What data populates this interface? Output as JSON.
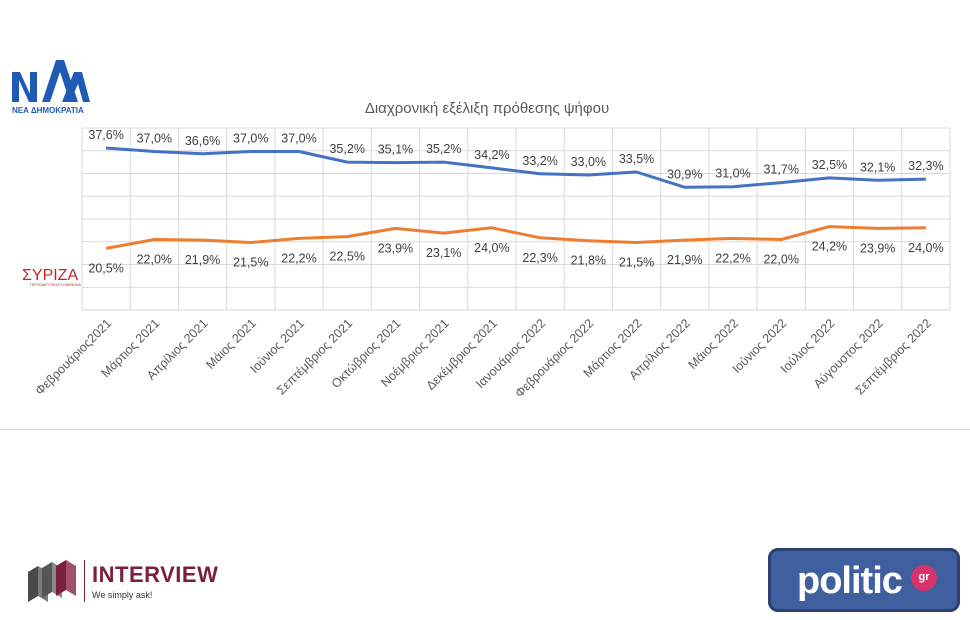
{
  "chart_data": {
    "type": "line",
    "title": "Διαχρονική εξέλιξη πρόθεσης ψήφου",
    "categories": [
      "Φεβρουάριος2021",
      "Μάρτιος 2021",
      "Απρίλιος 2021",
      "Μάιος 2021",
      "Ιούνιος 2021",
      "Σεπτέμβριος 2021",
      "Οκτώβριος 2021",
      "Νοέμβριος 2021",
      "Δεκέμβριος 2021",
      "Ιανουάριος 2022",
      "Φεβρουάριος 2022",
      "Μάρτιος 2022",
      "Απρίλιος 2022",
      "Μάιος 2022",
      "Ιούνιος 2022",
      "Ιούλιος 2022",
      "Αύγουστος 2022",
      "Σεπτέμβριος 2022"
    ],
    "series": [
      {
        "values": [
          37.6,
          37.0,
          36.6,
          37.0,
          37.0,
          35.2,
          35.1,
          35.2,
          34.2,
          33.2,
          33.0,
          33.5,
          30.9,
          31.0,
          31.7,
          32.5,
          32.1,
          32.3
        ],
        "labels": [
          "37,6%",
          "37,0%",
          "36,6%",
          "37,0%",
          "37,0%",
          "35,2%",
          "35,1%",
          "35,2%",
          "34,2%",
          "33,2%",
          "33,0%",
          "33,5%",
          "30,9%",
          "31,0%",
          "31,7%",
          "32,5%",
          "32,1%",
          "32,3%"
        ],
        "color": "#4472c4",
        "label_position": "above",
        "legend_icon": "nd-logo"
      },
      {
        "values": [
          20.5,
          22.0,
          21.9,
          21.5,
          22.2,
          22.5,
          23.9,
          23.1,
          24.0,
          22.3,
          21.8,
          21.5,
          21.9,
          22.2,
          22.0,
          24.2,
          23.9,
          24.0
        ],
        "labels": [
          "20,5%",
          "22,0%",
          "21,9%",
          "21,5%",
          "22,2%",
          "22,5%",
          "23,9%",
          "23,1%",
          "24,0%",
          "22,3%",
          "21,8%",
          "21,5%",
          "21,9%",
          "22,2%",
          "22,0%",
          "24,2%",
          "23,9%",
          "24,0%"
        ],
        "color": "#ed7d31",
        "label_position": "below",
        "legend_icon": "syriza-logo"
      }
    ],
    "ylim": [
      10,
      41
    ],
    "grid": true,
    "legend": "left-logos"
  },
  "logos": {
    "nd": {
      "text": "ΝΕΑ ΔΗΜΟΚΡΑΤΙΑ",
      "color": "#1f5ab4"
    },
    "syriza": {
      "text": "ΣΥΡΙΖΑ",
      "subtext": "ΠΡΟΟΔΕΥΤΙΚΗ ΣΥΜΜΑΧΙΑ",
      "color": "#c0272d"
    },
    "interview": {
      "name": "INTERVIEW",
      "tagline": "We simply ask!"
    },
    "politic": {
      "name": "politic",
      "suffix": "gr"
    }
  }
}
